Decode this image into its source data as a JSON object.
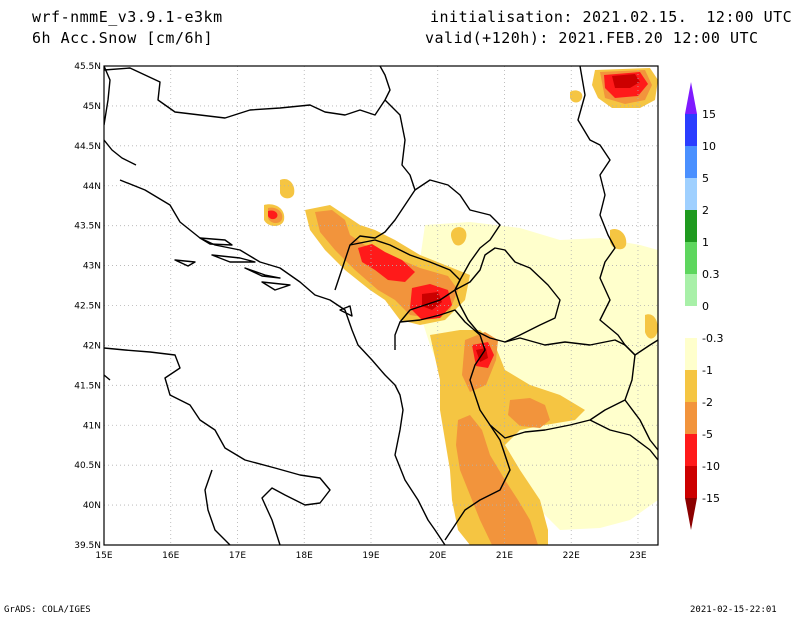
{
  "header": {
    "model": "wrf-nmmE_v3.9.1-e3km",
    "variable": "6h Acc.Snow [cm/6h]",
    "initialisation": "initialisation: 2021.02.15.  12:00 UTC",
    "valid": "valid(+120h): 2021.FEB.20 12:00 UTC"
  },
  "footer": {
    "credit": "GrADS: COLA/IGES",
    "timestamp": "2021-02-15-22:01"
  },
  "map": {
    "lon_ticks": [
      "15E",
      "16E",
      "17E",
      "18E",
      "19E",
      "20E",
      "21E",
      "22E",
      "23E"
    ],
    "lat_ticks": [
      "39.5N",
      "40N",
      "40.5N",
      "41N",
      "41.5N",
      "42N",
      "42.5N",
      "43N",
      "43.5N",
      "44N",
      "44.5N",
      "45N",
      "45.5N"
    ],
    "lon_range": [
      15,
      23.3
    ],
    "lat_range": [
      39.5,
      45.5
    ],
    "grid": true
  },
  "colorbar": {
    "labels": [
      "15",
      "10",
      "5",
      "2",
      "1",
      "0.3",
      "0",
      "-0.3",
      "-1",
      "-2",
      "-5",
      "-10",
      "-15"
    ],
    "colors": [
      "#7f1aff",
      "#2a3dff",
      "#4a90ff",
      "#9fd0ff",
      "#1f9a1f",
      "#5ed65e",
      "#a8f0a8",
      "#ffffff",
      "#ffffcc",
      "#f5c542",
      "#f2943c",
      "#ff1a1a",
      "#cc0000",
      "#8b0000"
    ]
  },
  "colors": {
    "light": "#ffffcc",
    "yellow": "#f5c542",
    "orange": "#f2943c",
    "red": "#ff1a1a",
    "darkred": "#cc0000"
  }
}
